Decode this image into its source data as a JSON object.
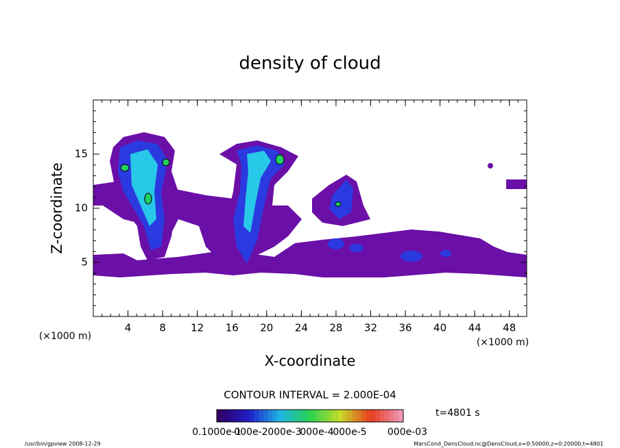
{
  "chart_data": {
    "type": "contour",
    "title": "density of cloud",
    "xlabel": "X-coordinate",
    "ylabel": "Z-coordinate",
    "xunit": "(×1000 m)",
    "yunit": "(×1000 m)",
    "xlim": [
      0,
      50
    ],
    "ylim": [
      0,
      20
    ],
    "xticks": [
      4,
      8,
      12,
      16,
      20,
      24,
      28,
      32,
      36,
      40,
      44,
      48
    ],
    "yticks": [
      5,
      10,
      15
    ],
    "contour_interval": "CONTOUR INTERVAL = 2.000E-04",
    "time": "t=4801 s",
    "colorbar_labels": [
      "0.1000e-1",
      "000e-2",
      "000e-3",
      "000e-4",
      "000e-5",
      "000e-03"
    ],
    "footer_left": "/usr/bin/gpview   2008-12-29",
    "footer_right": "MarsCond_DensCloud.nc@DensCloud,x=0:50000,z=0:20000,t=4801"
  }
}
